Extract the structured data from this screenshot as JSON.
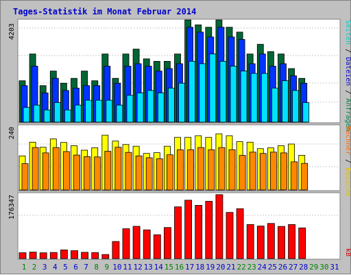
{
  "title": "Tages-Statistik im Monat Februar 2014",
  "legend_right": {
    "top": [
      {
        "text": "Seiten",
        "color": "#00cccc"
      },
      {
        "text": " / ",
        "color": "#000000"
      },
      {
        "text": "Dateien",
        "color": "#0000cc"
      },
      {
        "text": " / ",
        "color": "#000000"
      },
      {
        "text": "Anfragen",
        "color": "#008040"
      }
    ],
    "middle": [
      {
        "text": "Rechner",
        "color": "#ff6600"
      },
      {
        "text": " / ",
        "color": "#000000"
      },
      {
        "text": "Besuche",
        "color": "#e0c000"
      }
    ],
    "bottom": [
      {
        "text": "kB",
        "color": "#cc0000"
      }
    ]
  },
  "colors": {
    "background": "#c0c0c0",
    "panel": "#ffffff",
    "anfragen": "#006633",
    "dateien": "#0033ff",
    "seiten": "#00e0ff",
    "besuche": "#ffff00",
    "rechner": "#ff8800",
    "kb": "#ff0000",
    "weekday_label": "#0000cc",
    "weekend_label": "#008000"
  },
  "chart_data": [
    {
      "type": "bar",
      "panel": "top",
      "ymax_label": "4203",
      "ylim": [
        0,
        4203
      ],
      "categories": [
        "1",
        "2",
        "3",
        "4",
        "5",
        "6",
        "7",
        "8",
        "9",
        "10",
        "11",
        "12",
        "13",
        "14",
        "15",
        "16",
        "17",
        "18",
        "19",
        "20",
        "21",
        "22",
        "23",
        "24",
        "25",
        "26",
        "27",
        "28",
        "29",
        "30",
        "31"
      ],
      "series": [
        {
          "name": "Anfragen",
          "values": [
            1700,
            2800,
            1500,
            2100,
            1600,
            1800,
            2100,
            1700,
            2800,
            1800,
            2800,
            3000,
            2600,
            2500,
            2500,
            2800,
            4200,
            4000,
            3900,
            4200,
            3900,
            3700,
            2800,
            3200,
            2900,
            2800,
            2200,
            1800,
            0,
            0,
            0
          ]
        },
        {
          "name": "Dateien",
          "values": [
            1500,
            2300,
            1200,
            1800,
            1300,
            1400,
            1500,
            1500,
            2300,
            1600,
            2300,
            2400,
            2300,
            2100,
            2200,
            2400,
            3900,
            3700,
            3500,
            3900,
            3500,
            3400,
            2400,
            2800,
            2300,
            2400,
            1900,
            1600,
            0,
            0,
            0
          ]
        },
        {
          "name": "Seiten",
          "values": [
            600,
            700,
            500,
            800,
            500,
            700,
            900,
            900,
            900,
            700,
            1100,
            1200,
            1300,
            1200,
            1400,
            1600,
            2500,
            2400,
            2800,
            2500,
            2300,
            2100,
            2000,
            2000,
            1400,
            1700,
            1300,
            800,
            0,
            0,
            0
          ]
        }
      ]
    },
    {
      "type": "bar",
      "panel": "middle",
      "ymax_label": "240",
      "ylim": [
        0,
        240
      ],
      "categories": [
        "1",
        "2",
        "3",
        "4",
        "5",
        "6",
        "7",
        "8",
        "9",
        "10",
        "11",
        "12",
        "13",
        "14",
        "15",
        "16",
        "17",
        "18",
        "19",
        "20",
        "21",
        "22",
        "23",
        "24",
        "25",
        "26",
        "27",
        "28",
        "29",
        "30",
        "31"
      ],
      "series": [
        {
          "name": "Besuche",
          "values": [
            127,
            178,
            159,
            190,
            177,
            165,
            148,
            157,
            204,
            182,
            169,
            163,
            136,
            139,
            163,
            196,
            196,
            202,
            196,
            209,
            202,
            180,
            178,
            154,
            157,
            165,
            171,
            129,
            0,
            0,
            0
          ]
        },
        {
          "name": "Rechner",
          "values": [
            98,
            158,
            138,
            158,
            143,
            130,
            124,
            123,
            144,
            159,
            140,
            127,
            120,
            116,
            131,
            150,
            150,
            158,
            150,
            158,
            150,
            129,
            141,
            136,
            141,
            138,
            105,
            99,
            0,
            0,
            0
          ]
        }
      ]
    },
    {
      "type": "bar",
      "panel": "bottom",
      "ymax_label": "176347",
      "ylim": [
        0,
        176347
      ],
      "categories": [
        "1",
        "2",
        "3",
        "4",
        "5",
        "6",
        "7",
        "8",
        "9",
        "10",
        "11",
        "12",
        "13",
        "14",
        "15",
        "16",
        "17",
        "18",
        "19",
        "20",
        "21",
        "22",
        "23",
        "24",
        "25",
        "26",
        "27",
        "28",
        "29",
        "30",
        "31"
      ],
      "series": [
        {
          "name": "kB",
          "values": [
            15800,
            17500,
            15600,
            16600,
            23400,
            21300,
            16800,
            16200,
            10900,
            46200,
            80800,
            87200,
            77500,
            64500,
            84000,
            140000,
            158000,
            144000,
            155000,
            173000,
            125000,
            135000,
            92000,
            88000,
            95000,
            87000,
            92000,
            83000,
            0,
            0,
            0
          ]
        }
      ]
    }
  ]
}
